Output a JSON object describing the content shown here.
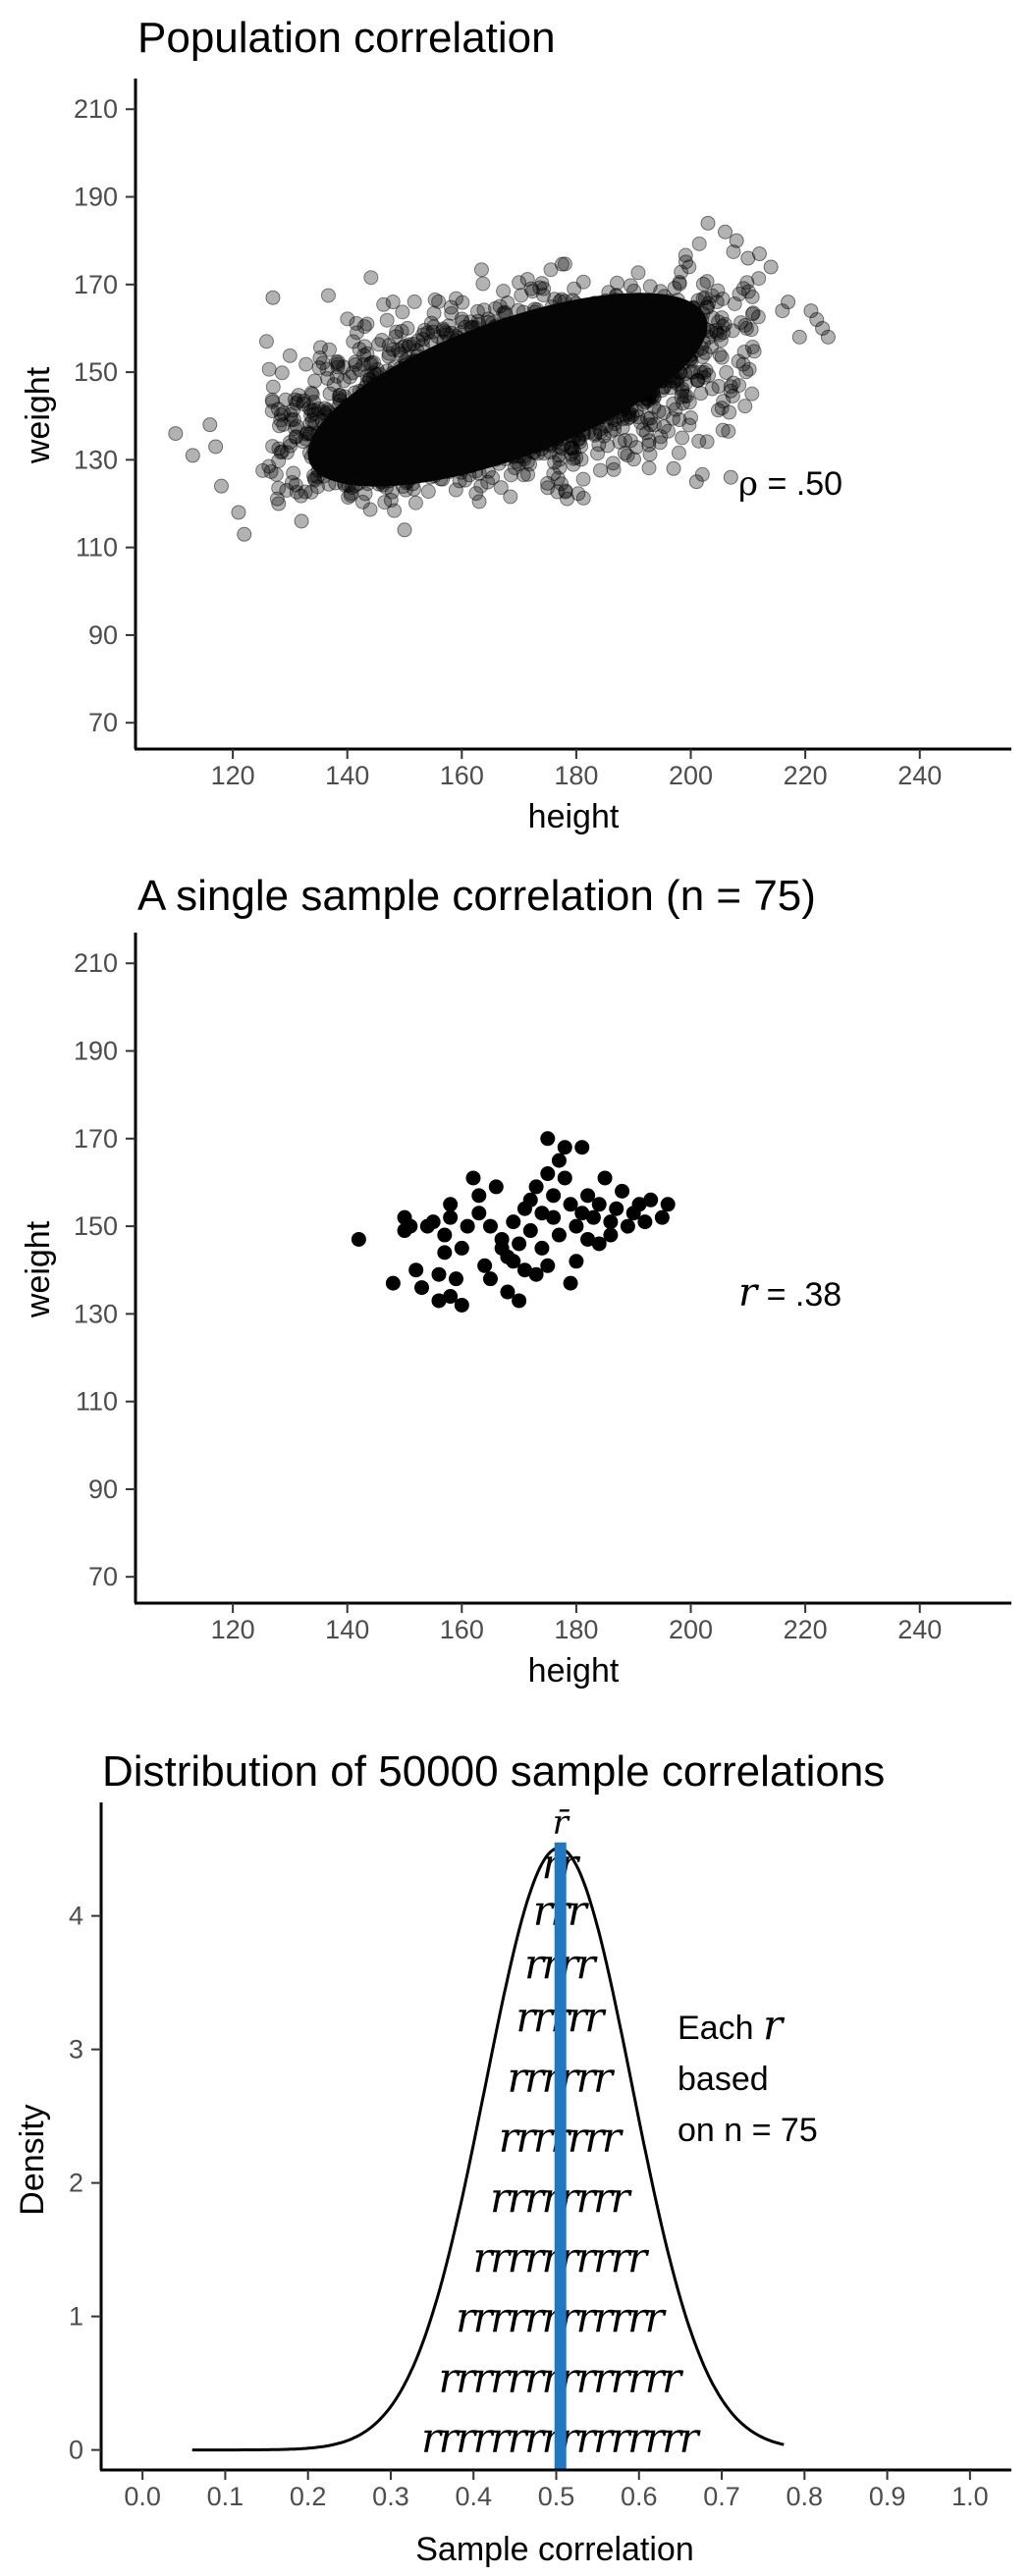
{
  "chart_data": [
    {
      "type": "scatter",
      "title": "Population correlation",
      "xlabel": "height",
      "ylabel": "weight",
      "xlim": [
        103,
        256
      ],
      "ylim": [
        64,
        217
      ],
      "x_ticks": [
        "120",
        "140",
        "160",
        "180",
        "200",
        "220",
        "240"
      ],
      "y_ticks": [
        "70",
        "90",
        "110",
        "130",
        "150",
        "170",
        "190",
        "210"
      ],
      "annotation": {
        "symbol": "ρ",
        "text": " = .50"
      },
      "point_color": "#000000",
      "point_opacity": 0.3,
      "population": {
        "mean_x": 168,
        "mean_y": 145,
        "sd_x": 20,
        "sd_y": 11,
        "rho": 0.5,
        "n_shown": 2600
      },
      "outlier_points": [
        [
          110,
          136
        ],
        [
          113,
          131
        ],
        [
          116,
          138
        ],
        [
          117,
          133
        ],
        [
          118,
          124
        ],
        [
          121,
          118
        ],
        [
          122,
          113
        ],
        [
          127,
          167
        ],
        [
          128,
          120
        ],
        [
          132,
          116
        ],
        [
          150,
          114
        ],
        [
          203,
          184
        ],
        [
          206,
          182
        ],
        [
          208,
          180
        ],
        [
          210,
          176
        ],
        [
          212,
          177
        ],
        [
          214,
          174
        ],
        [
          216,
          164
        ],
        [
          217,
          166
        ],
        [
          219,
          158
        ],
        [
          221,
          164
        ],
        [
          222,
          162
        ],
        [
          223,
          160
        ],
        [
          224,
          158
        ],
        [
          207,
          126
        ],
        [
          201,
          125
        ],
        [
          197,
          128
        ]
      ]
    },
    {
      "type": "scatter",
      "title": "A single sample correlation (n = 75)",
      "xlabel": "height",
      "ylabel": "weight",
      "xlim": [
        103,
        256
      ],
      "ylim": [
        64,
        217
      ],
      "x_ticks": [
        "120",
        "140",
        "160",
        "180",
        "200",
        "220",
        "240"
      ],
      "y_ticks": [
        "70",
        "90",
        "110",
        "130",
        "150",
        "170",
        "190",
        "210"
      ],
      "annotation": {
        "symbol": "r",
        "text": " = .38"
      },
      "point_color": "#000000",
      "points": [
        [
          142,
          147
        ],
        [
          148,
          137
        ],
        [
          150,
          152
        ],
        [
          150,
          149
        ],
        [
          151,
          150
        ],
        [
          152,
          140
        ],
        [
          153,
          136
        ],
        [
          154,
          150
        ],
        [
          155,
          151
        ],
        [
          156,
          139
        ],
        [
          156,
          133
        ],
        [
          157,
          148
        ],
        [
          157,
          144
        ],
        [
          158,
          152
        ],
        [
          158,
          155
        ],
        [
          158,
          134
        ],
        [
          159,
          138
        ],
        [
          160,
          145
        ],
        [
          160,
          132
        ],
        [
          161,
          150
        ],
        [
          162,
          161
        ],
        [
          163,
          157
        ],
        [
          163,
          153
        ],
        [
          164,
          141
        ],
        [
          165,
          150
        ],
        [
          165,
          138
        ],
        [
          166,
          159
        ],
        [
          167,
          147
        ],
        [
          167,
          145
        ],
        [
          168,
          143
        ],
        [
          168,
          135
        ],
        [
          169,
          151
        ],
        [
          169,
          142
        ],
        [
          170,
          146
        ],
        [
          170,
          133
        ],
        [
          171,
          154
        ],
        [
          171,
          140
        ],
        [
          172,
          156
        ],
        [
          172,
          149
        ],
        [
          173,
          159
        ],
        [
          173,
          139
        ],
        [
          174,
          153
        ],
        [
          174,
          145
        ],
        [
          175,
          162
        ],
        [
          175,
          170
        ],
        [
          175,
          141
        ],
        [
          176,
          157
        ],
        [
          176,
          152
        ],
        [
          177,
          165
        ],
        [
          177,
          148
        ],
        [
          178,
          161
        ],
        [
          178,
          168
        ],
        [
          179,
          155
        ],
        [
          179,
          137
        ],
        [
          180,
          150
        ],
        [
          180,
          142
        ],
        [
          181,
          168
        ],
        [
          181,
          153
        ],
        [
          182,
          147
        ],
        [
          182,
          157
        ],
        [
          183,
          152
        ],
        [
          184,
          146
        ],
        [
          184,
          155
        ],
        [
          185,
          161
        ],
        [
          186,
          151
        ],
        [
          186,
          148
        ],
        [
          187,
          154
        ],
        [
          188,
          158
        ],
        [
          189,
          150
        ],
        [
          190,
          153
        ],
        [
          191,
          155
        ],
        [
          192,
          151
        ],
        [
          193,
          156
        ],
        [
          195,
          152
        ],
        [
          196,
          155
        ]
      ]
    },
    {
      "type": "line",
      "title": "Distribution of 50000 sample correlations",
      "xlabel": "Sample correlation",
      "ylabel": "Density",
      "xlim": [
        -0.05,
        1.05
      ],
      "ylim": [
        -0.15,
        4.85
      ],
      "x_ticks": [
        "0.0",
        "0.1",
        "0.2",
        "0.3",
        "0.4",
        "0.5",
        "0.6",
        "0.7",
        "0.8",
        "0.9",
        "1.0"
      ],
      "y_ticks": [
        "0",
        "1",
        "2",
        "3",
        "4"
      ],
      "density": {
        "mean": 0.503,
        "sd": 0.0885,
        "x_min": 0.06,
        "x_max": 0.775
      },
      "mean_line": {
        "x": 0.505,
        "label": "r̄",
        "color": "#1f78c1"
      },
      "annotation_lines": [
        "Each",
        "based",
        "on n = 75"
      ],
      "annotation_symbol": "r",
      "r_rows": [
        {
          "y": 0,
          "count": 16
        },
        {
          "y": 0.45,
          "count": 14
        },
        {
          "y": 0.9,
          "count": 12
        },
        {
          "y": 1.35,
          "count": 10
        },
        {
          "y": 1.8,
          "count": 8
        },
        {
          "y": 2.25,
          "count": 7
        },
        {
          "y": 2.7,
          "count": 6
        },
        {
          "y": 3.15,
          "count": 5
        },
        {
          "y": 3.55,
          "count": 4
        },
        {
          "y": 3.95,
          "count": 3
        },
        {
          "y": 4.3,
          "count": 2
        }
      ]
    }
  ]
}
